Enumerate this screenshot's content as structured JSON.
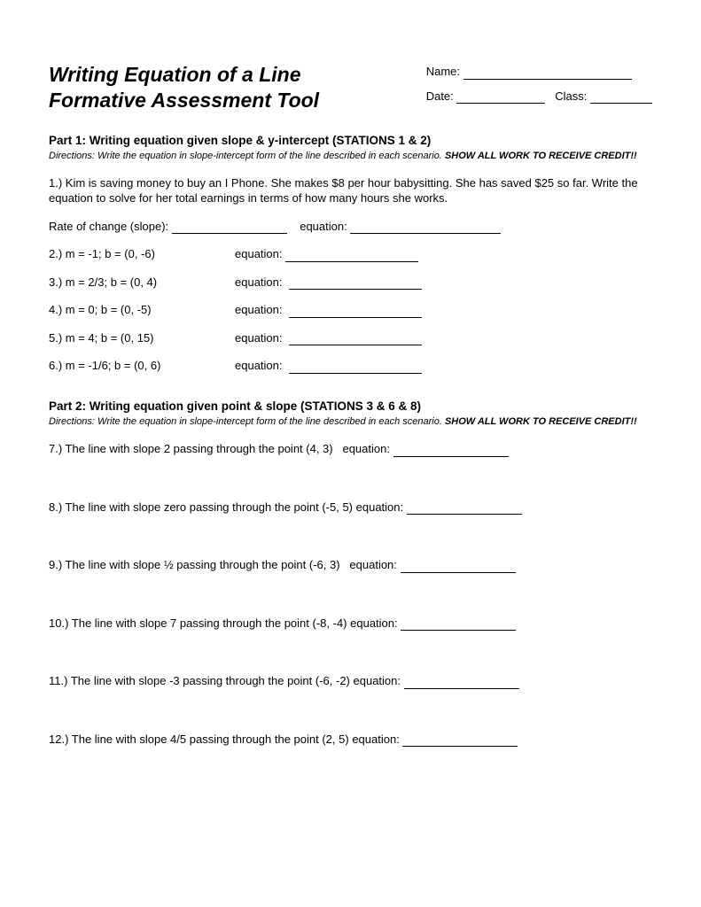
{
  "title_line1": "Writing Equation of a Line",
  "title_line2": "Formative Assessment Tool",
  "meta": {
    "name_label": "Name:",
    "date_label": "Date:",
    "class_label": "Class:"
  },
  "part1": {
    "heading": "Part 1: Writing equation given slope & y-intercept (STATIONS 1 & 2)",
    "directions_pre": "Directions: Write the equation in slope-intercept form of the line described in each scenario. ",
    "directions_emph": "SHOW ALL WORK TO RECEIVE CREDIT!!",
    "q1": "1.) Kim is saving money to buy an I Phone. She makes $8 per hour babysitting. She has saved $25 so far. Write the equation to solve for her total earnings in terms of how many hours she works.",
    "q1_rate_label": "Rate of change (slope):",
    "q1_eq_label": "equation:",
    "items": [
      {
        "lhs": "2.) m = -1;  b = (0, -6)",
        "label": "equation:"
      },
      {
        "lhs": "3.) m = 2/3; b = (0, 4)",
        "label": "equation:"
      },
      {
        "lhs": "4.) m = 0; b = (0, -5)",
        "label": "equation:"
      },
      {
        "lhs": "5.) m = 4; b = (0, 15)",
        "label": "equation:"
      },
      {
        "lhs": "6.) m = -1/6; b = (0, 6)",
        "label": "equation:"
      }
    ]
  },
  "part2": {
    "heading": "Part 2: Writing equation given point & slope (STATIONS 3 & 6 & 8)",
    "directions_pre": "Directions: Write the equation in slope-intercept form of the line described in each scenario. ",
    "directions_emph": "SHOW ALL WORK TO RECEIVE CREDIT!!",
    "items": [
      {
        "text": "7.) The line with slope 2 passing through the point (4, 3)",
        "label": "equation:"
      },
      {
        "text": "8.) The line with slope zero passing through the point (-5, 5)",
        "label": "equation:"
      },
      {
        "text": "9.) The line with slope ½ passing through the point (-6, 3)",
        "label": "equation:"
      },
      {
        "text": "10.) The line with slope 7 passing through the point (-8, -4)",
        "label": "equation:"
      },
      {
        "text": "11.) The line with slope -3 passing through the point (-6, -2)",
        "label": "equation:"
      },
      {
        "text": "12.) The line with slope 4/5 passing through the point (2, 5)",
        "label": "equation:"
      }
    ]
  }
}
